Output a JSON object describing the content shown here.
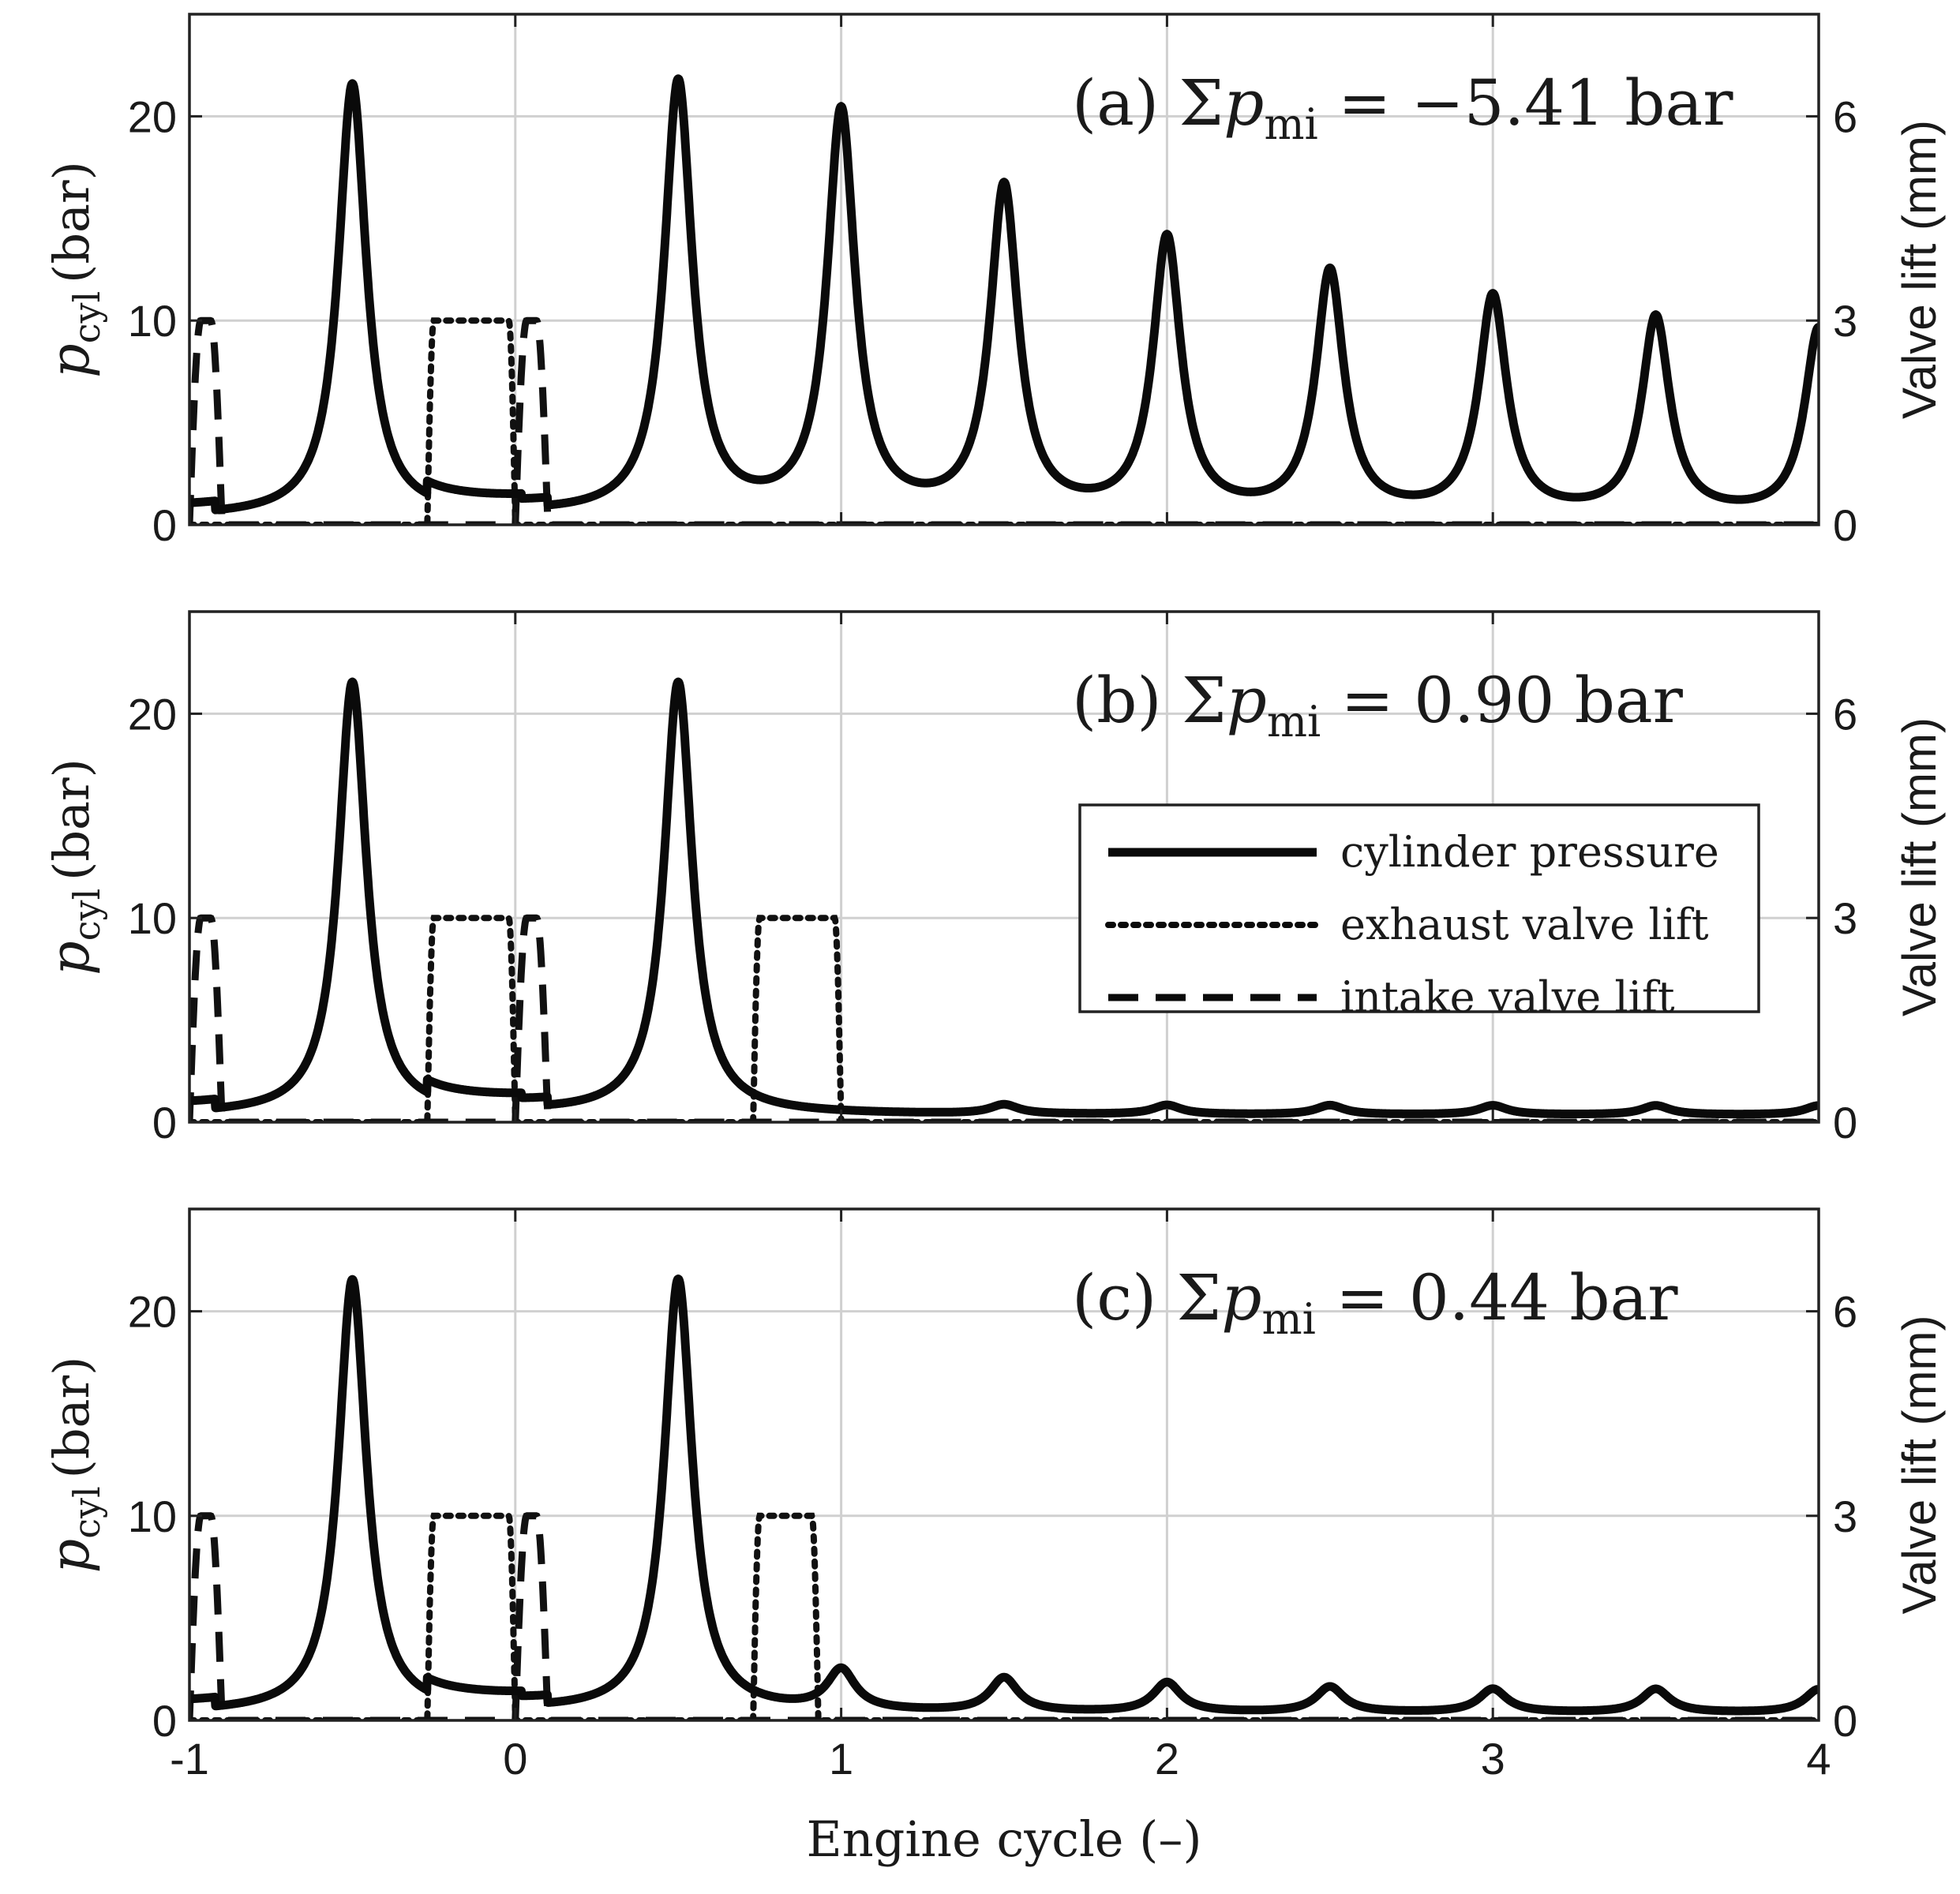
{
  "chart_data": {
    "type": "line",
    "shared_x": {
      "label": "Engine cycle (–)",
      "range": [
        -1,
        4
      ],
      "ticks": [
        -1,
        0,
        1,
        2,
        3,
        4
      ],
      "tick_labels": [
        "-1",
        "0",
        "1",
        "2",
        "3",
        "4"
      ]
    },
    "left_axis": {
      "label_symbol": "p",
      "label_subscript": "cyl",
      "label_unit": "(bar)",
      "range": [
        0,
        25
      ],
      "ticks": [
        0,
        10,
        20
      ],
      "tick_labels": [
        "0",
        "10",
        "20"
      ]
    },
    "right_axis": {
      "label": "Valve lift (mm)",
      "range": [
        0,
        7.5
      ],
      "ticks": [
        0,
        3,
        6
      ],
      "tick_labels": [
        "0",
        "3",
        "6"
      ]
    },
    "grid": true,
    "legend": {
      "panel": "b",
      "placement": "middle-right",
      "entries": [
        {
          "label": "cylinder pressure",
          "style": "solid"
        },
        {
          "label": "exhaust valve lift",
          "style": "dotted"
        },
        {
          "label": "intake valve lift",
          "style": "dashed"
        }
      ]
    },
    "panels": [
      {
        "id": "a",
        "annotation": {
          "prefix": "(a) Σ",
          "symbol": "p",
          "subscript": "mi",
          "suffix": " = −5.41 bar"
        },
        "pressure_peaks": [
          {
            "cycle": -0.5,
            "bar": 21.5
          },
          {
            "cycle": 0.5,
            "bar": 21.5
          },
          {
            "cycle": 1.0,
            "bar": 20.0
          },
          {
            "cycle": 1.5,
            "bar": 16.3
          },
          {
            "cycle": 2.0,
            "bar": 13.8
          },
          {
            "cycle": 2.5,
            "bar": 12.2
          },
          {
            "cycle": 3.0,
            "bar": 11.0
          },
          {
            "cycle": 3.5,
            "bar": 10.0
          },
          {
            "cycle": 4.0,
            "bar": 9.5
          }
        ],
        "exhaust_valve_openings": [
          {
            "start": -0.27,
            "end": 0.0,
            "max_lift_mm": 3.0
          }
        ],
        "intake_valve_openings": [
          {
            "start": -1.0,
            "end": -0.9,
            "max_lift_mm": 3.0
          },
          {
            "start": 0.0,
            "end": 0.1,
            "max_lift_mm": 3.0
          }
        ]
      },
      {
        "id": "b",
        "annotation": {
          "prefix": "(b) Σ",
          "symbol": "p",
          "subscript": "mi",
          "suffix": " = 0.90 bar"
        },
        "pressure_peaks": [
          {
            "cycle": -0.5,
            "bar": 21.5
          },
          {
            "cycle": 0.5,
            "bar": 21.5
          },
          {
            "cycle": 1.5,
            "bar": 0.8
          },
          {
            "cycle": 2.0,
            "bar": 0.8
          },
          {
            "cycle": 2.5,
            "bar": 0.8
          },
          {
            "cycle": 3.0,
            "bar": 0.8
          },
          {
            "cycle": 3.5,
            "bar": 0.8
          },
          {
            "cycle": 4.0,
            "bar": 0.8
          }
        ],
        "exhaust_valve_openings": [
          {
            "start": -0.27,
            "end": 0.0,
            "max_lift_mm": 3.0
          },
          {
            "start": 0.73,
            "end": 1.0,
            "max_lift_mm": 3.0
          }
        ],
        "intake_valve_openings": [
          {
            "start": -1.0,
            "end": -0.9,
            "max_lift_mm": 3.0
          },
          {
            "start": 0.0,
            "end": 0.1,
            "max_lift_mm": 3.0
          }
        ]
      },
      {
        "id": "c",
        "annotation": {
          "prefix": "(c) Σ",
          "symbol": "p",
          "subscript": "mi",
          "suffix": " = 0.44 bar"
        },
        "pressure_peaks": [
          {
            "cycle": -0.5,
            "bar": 21.5
          },
          {
            "cycle": 0.5,
            "bar": 21.5
          },
          {
            "cycle": 1.0,
            "bar": 2.3
          },
          {
            "cycle": 1.5,
            "bar": 2.0
          },
          {
            "cycle": 2.0,
            "bar": 1.8
          },
          {
            "cycle": 2.5,
            "bar": 1.6
          },
          {
            "cycle": 3.0,
            "bar": 1.5
          },
          {
            "cycle": 3.5,
            "bar": 1.5
          },
          {
            "cycle": 4.0,
            "bar": 1.5
          }
        ],
        "exhaust_valve_openings": [
          {
            "start": -0.27,
            "end": 0.0,
            "max_lift_mm": 3.0
          },
          {
            "start": 0.73,
            "end": 0.93,
            "max_lift_mm": 3.0
          }
        ],
        "intake_valve_openings": [
          {
            "start": -1.0,
            "end": -0.9,
            "max_lift_mm": 3.0
          },
          {
            "start": 0.0,
            "end": 0.1,
            "max_lift_mm": 3.0
          }
        ]
      }
    ]
  }
}
